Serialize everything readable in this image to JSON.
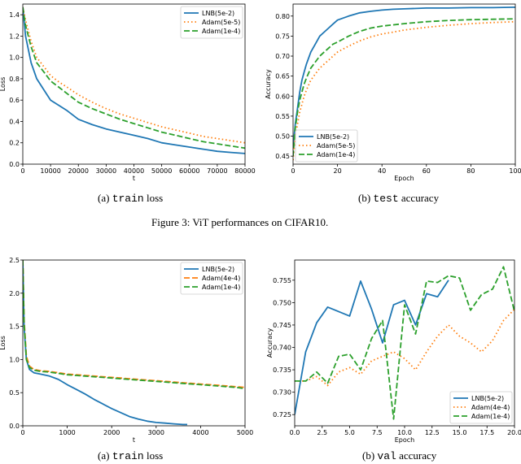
{
  "figures": [
    {
      "caption": "Figure 3: ViT performances on CIFAR10.",
      "subcaptions": [
        {
          "label": "(a)",
          "mono": "train",
          "rest": "loss"
        },
        {
          "label": "(b)",
          "mono": "test",
          "rest": "accuracy"
        }
      ]
    },
    {
      "caption": "",
      "subcaptions": [
        {
          "label": "(a)",
          "mono": "train",
          "rest": "loss"
        },
        {
          "label": "(b)",
          "mono": "val",
          "rest": "accuracy"
        }
      ]
    }
  ],
  "colors": {
    "lnb": "#1f77b4",
    "adam1": "#ff7f0e",
    "adam2": "#2ca02c"
  },
  "chart_data": [
    {
      "type": "line",
      "xlabel": "t",
      "ylabel": "Loss",
      "xlim": [
        0,
        80000
      ],
      "ylim": [
        0,
        1.5
      ],
      "xticks": [
        0,
        10000,
        20000,
        30000,
        40000,
        50000,
        60000,
        70000,
        80000
      ],
      "yticks": [
        0.0,
        0.2,
        0.4,
        0.6,
        0.8,
        1.0,
        1.2,
        1.4
      ],
      "legend": "top-right",
      "series": [
        {
          "name": "LNB(5e-2)",
          "style": "solid",
          "color": "#1f77b4",
          "x": [
            0,
            1000,
            3000,
            5000,
            8000,
            10000,
            13000,
            16000,
            20000,
            25000,
            30000,
            35000,
            40000,
            45000,
            50000,
            55000,
            60000,
            65000,
            70000,
            75000,
            80000
          ],
          "y": [
            1.47,
            1.2,
            0.95,
            0.8,
            0.68,
            0.6,
            0.55,
            0.5,
            0.42,
            0.37,
            0.33,
            0.3,
            0.27,
            0.24,
            0.2,
            0.18,
            0.16,
            0.14,
            0.12,
            0.11,
            0.1
          ]
        },
        {
          "name": "Adam(5e-5)",
          "style": "dotted",
          "color": "#ff7f0e",
          "x": [
            0,
            1000,
            3000,
            5000,
            8000,
            10000,
            13000,
            16000,
            20000,
            25000,
            30000,
            35000,
            40000,
            45000,
            50000,
            55000,
            60000,
            65000,
            70000,
            75000,
            80000
          ],
          "y": [
            1.47,
            1.35,
            1.15,
            1.0,
            0.9,
            0.83,
            0.77,
            0.72,
            0.65,
            0.58,
            0.52,
            0.47,
            0.43,
            0.39,
            0.35,
            0.32,
            0.29,
            0.26,
            0.24,
            0.22,
            0.2
          ]
        },
        {
          "name": "Adam(1e-4)",
          "style": "dashed",
          "color": "#2ca02c",
          "x": [
            0,
            1000,
            3000,
            5000,
            8000,
            10000,
            13000,
            16000,
            20000,
            25000,
            30000,
            35000,
            40000,
            45000,
            50000,
            55000,
            60000,
            65000,
            70000,
            75000,
            80000
          ],
          "y": [
            1.47,
            1.3,
            1.1,
            0.95,
            0.85,
            0.78,
            0.72,
            0.66,
            0.58,
            0.52,
            0.47,
            0.42,
            0.38,
            0.34,
            0.3,
            0.27,
            0.24,
            0.21,
            0.19,
            0.17,
            0.15
          ]
        }
      ]
    },
    {
      "type": "line",
      "xlabel": "Epoch",
      "ylabel": "Accuracy",
      "xlim": [
        0,
        100
      ],
      "ylim": [
        0.43,
        0.83
      ],
      "xticks": [
        0,
        20,
        40,
        60,
        80,
        100
      ],
      "yticks": [
        0.45,
        0.5,
        0.55,
        0.6,
        0.65,
        0.7,
        0.75,
        0.8
      ],
      "legend": "bottom-left",
      "series": [
        {
          "name": "LNB(5e-2)",
          "style": "solid",
          "color": "#1f77b4",
          "x": [
            0,
            1,
            2,
            3,
            4,
            5,
            6,
            8,
            10,
            12,
            14,
            16,
            18,
            20,
            25,
            30,
            35,
            40,
            45,
            50,
            60,
            70,
            80,
            90,
            100
          ],
          "y": [
            0.47,
            0.53,
            0.57,
            0.61,
            0.64,
            0.66,
            0.68,
            0.71,
            0.73,
            0.75,
            0.76,
            0.77,
            0.78,
            0.79,
            0.8,
            0.808,
            0.812,
            0.815,
            0.817,
            0.818,
            0.82,
            0.82,
            0.821,
            0.821,
            0.822
          ]
        },
        {
          "name": "Adam(5e-5)",
          "style": "dotted",
          "color": "#ff7f0e",
          "x": [
            0,
            1,
            2,
            3,
            4,
            5,
            6,
            8,
            10,
            12,
            14,
            16,
            18,
            20,
            25,
            30,
            35,
            40,
            45,
            50,
            60,
            70,
            80,
            90,
            100
          ],
          "y": [
            0.44,
            0.5,
            0.53,
            0.56,
            0.58,
            0.6,
            0.615,
            0.64,
            0.655,
            0.67,
            0.68,
            0.69,
            0.7,
            0.71,
            0.725,
            0.738,
            0.748,
            0.755,
            0.76,
            0.765,
            0.772,
            0.777,
            0.781,
            0.784,
            0.786
          ]
        },
        {
          "name": "Adam(1e-4)",
          "style": "dashed",
          "color": "#2ca02c",
          "x": [
            0,
            1,
            2,
            3,
            4,
            5,
            6,
            8,
            10,
            12,
            14,
            16,
            18,
            20,
            25,
            30,
            35,
            40,
            45,
            50,
            60,
            70,
            80,
            90,
            100
          ],
          "y": [
            0.45,
            0.52,
            0.56,
            0.59,
            0.61,
            0.63,
            0.645,
            0.67,
            0.685,
            0.7,
            0.71,
            0.72,
            0.73,
            0.735,
            0.75,
            0.762,
            0.77,
            0.775,
            0.778,
            0.781,
            0.786,
            0.789,
            0.791,
            0.792,
            0.793
          ]
        }
      ]
    },
    {
      "type": "line",
      "xlabel": "t",
      "ylabel": "Loss",
      "xlim": [
        0,
        5000
      ],
      "ylim": [
        0,
        2.5
      ],
      "xticks": [
        0,
        1000,
        2000,
        3000,
        4000,
        5000
      ],
      "yticks": [
        0.0,
        0.5,
        1.0,
        1.5,
        2.0,
        2.5
      ],
      "legend": "top-right",
      "series": [
        {
          "name": "LNB(5e-2)",
          "style": "solid",
          "color": "#1f77b4",
          "x": [
            0,
            30,
            80,
            150,
            250,
            400,
            600,
            800,
            1000,
            1200,
            1400,
            1600,
            1800,
            2000,
            2200,
            2400,
            2600,
            2800,
            3000,
            3200,
            3400,
            3600,
            3700
          ],
          "y": [
            2.5,
            1.5,
            1.0,
            0.85,
            0.8,
            0.78,
            0.75,
            0.7,
            0.62,
            0.55,
            0.48,
            0.4,
            0.33,
            0.26,
            0.2,
            0.14,
            0.1,
            0.07,
            0.05,
            0.04,
            0.03,
            0.02,
            0.02
          ]
        },
        {
          "name": "Adam(4e-4)",
          "style": "dashed",
          "color": "#ff7f0e",
          "x": [
            0,
            30,
            80,
            150,
            250,
            400,
            600,
            800,
            1000,
            1200,
            1400,
            1600,
            1800,
            2000,
            2200,
            2400,
            2600,
            2800,
            3000,
            3200,
            3400,
            3600,
            3800,
            4000,
            4200,
            4400,
            4600,
            4800,
            5000
          ],
          "y": [
            2.5,
            1.6,
            1.05,
            0.9,
            0.85,
            0.83,
            0.82,
            0.8,
            0.78,
            0.77,
            0.76,
            0.75,
            0.74,
            0.73,
            0.72,
            0.71,
            0.7,
            0.69,
            0.68,
            0.67,
            0.66,
            0.65,
            0.64,
            0.63,
            0.62,
            0.61,
            0.6,
            0.59,
            0.58
          ]
        },
        {
          "name": "Adam(1e-4)",
          "style": "dashed",
          "color": "#2ca02c",
          "x": [
            0,
            30,
            80,
            150,
            250,
            400,
            600,
            800,
            1000,
            1200,
            1400,
            1600,
            1800,
            2000,
            2200,
            2400,
            2600,
            2800,
            3000,
            3200,
            3400,
            3600,
            3800,
            4000,
            4200,
            4400,
            4600,
            4800,
            5000
          ],
          "y": [
            2.5,
            1.55,
            1.0,
            0.88,
            0.84,
            0.82,
            0.81,
            0.79,
            0.77,
            0.76,
            0.75,
            0.74,
            0.73,
            0.72,
            0.71,
            0.7,
            0.69,
            0.68,
            0.67,
            0.66,
            0.65,
            0.64,
            0.63,
            0.62,
            0.61,
            0.6,
            0.59,
            0.58,
            0.56
          ]
        }
      ]
    },
    {
      "type": "line",
      "xlabel": "Epoch",
      "ylabel": "Accuracy",
      "xlim": [
        0,
        20
      ],
      "ylim": [
        0.7225,
        0.7595
      ],
      "xticks": [
        0.0,
        2.5,
        5.0,
        7.5,
        10.0,
        12.5,
        15.0,
        17.5,
        20.0
      ],
      "yticks": [
        0.725,
        0.73,
        0.735,
        0.74,
        0.745,
        0.75,
        0.755
      ],
      "legend": "bottom-right",
      "series": [
        {
          "name": "LNB(5e-2)",
          "style": "solid",
          "color": "#1f77b4",
          "x": [
            0,
            1,
            2,
            3,
            4,
            5,
            6,
            7,
            8,
            9,
            10,
            11,
            12,
            13,
            14
          ],
          "y": [
            0.725,
            0.739,
            0.7455,
            0.749,
            0.748,
            0.747,
            0.7548,
            0.7485,
            0.741,
            0.7495,
            0.7505,
            0.745,
            0.752,
            0.7513,
            0.755
          ]
        },
        {
          "name": "Adam(4e-4)",
          "style": "dotted",
          "color": "#ff7f0e",
          "x": [
            0,
            1,
            2,
            3,
            4,
            5,
            6,
            7,
            8,
            9,
            10,
            11,
            12,
            13,
            14,
            15,
            16,
            17,
            18,
            19,
            20
          ],
          "y": [
            0.7325,
            0.7325,
            0.7335,
            0.7315,
            0.7345,
            0.7355,
            0.734,
            0.737,
            0.738,
            0.739,
            0.7375,
            0.735,
            0.739,
            0.7425,
            0.745,
            0.7425,
            0.741,
            0.739,
            0.7415,
            0.746,
            0.7485
          ]
        },
        {
          "name": "Adam(1e-4)",
          "style": "dashed",
          "color": "#2ca02c",
          "x": [
            0,
            1,
            2,
            3,
            4,
            5,
            6,
            7,
            8,
            9,
            10,
            11,
            12,
            13,
            14,
            15,
            16,
            17,
            18,
            19,
            20
          ],
          "y": [
            0.7325,
            0.7325,
            0.7345,
            0.732,
            0.738,
            0.7385,
            0.735,
            0.742,
            0.746,
            0.724,
            0.7495,
            0.743,
            0.7548,
            0.7545,
            0.756,
            0.7555,
            0.7483,
            0.7518,
            0.753,
            0.758,
            0.748
          ]
        }
      ]
    }
  ]
}
